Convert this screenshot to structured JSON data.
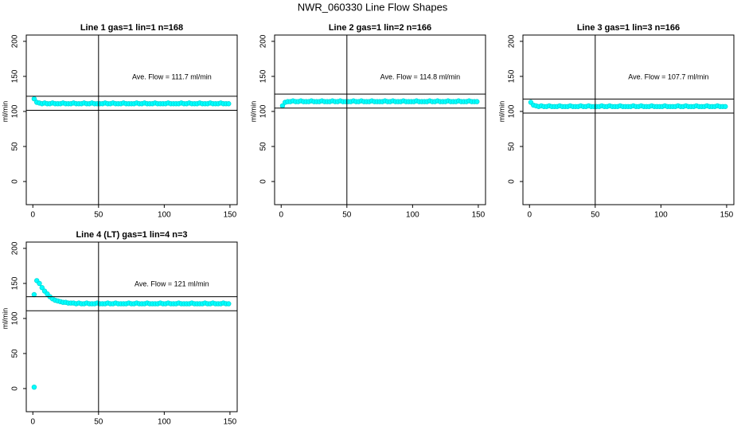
{
  "title": "NWR_060330  Line Flow Shapes",
  "chart_data": [
    {
      "type": "scatter",
      "title": "Line 1 gas=1 lin=1 n=168",
      "ylabel": "ml/min",
      "annotation": "Ave. Flow =  111.7  ml/min",
      "color": "#00ffff",
      "x": [
        1,
        3,
        5,
        7,
        9,
        11,
        13,
        15,
        17,
        19,
        21,
        23,
        25,
        27,
        29,
        31,
        33,
        35,
        37,
        39,
        41,
        43,
        45,
        47,
        49,
        51,
        53,
        55,
        57,
        59,
        61,
        63,
        65,
        67,
        69,
        71,
        73,
        75,
        77,
        79,
        81,
        83,
        85,
        87,
        89,
        91,
        93,
        95,
        97,
        99,
        101,
        103,
        105,
        107,
        109,
        111,
        113,
        115,
        117,
        119,
        121,
        123,
        125,
        127,
        129,
        131,
        133,
        135,
        137,
        139,
        141,
        143,
        145,
        147,
        149
      ],
      "values": [
        118,
        113,
        112,
        111,
        112,
        111,
        111,
        112,
        111,
        111,
        111,
        112,
        111,
        111,
        111,
        112,
        111,
        111,
        111,
        112,
        111,
        111,
        112,
        111,
        111,
        111,
        111,
        112,
        111,
        111,
        112,
        111,
        111,
        111,
        112,
        111,
        111,
        111,
        111,
        112,
        111,
        111,
        112,
        111,
        111,
        111,
        112,
        111,
        111,
        111,
        111,
        112,
        111,
        111,
        111,
        111,
        112,
        111,
        111,
        112,
        111,
        111,
        111,
        112,
        111,
        111,
        111,
        112,
        111,
        111,
        111,
        112,
        111,
        111,
        111
      ],
      "hlines": [
        101.7,
        121.7
      ],
      "vline": 50,
      "xlim": [
        -5,
        155.5
      ],
      "ylim": [
        -33,
        209
      ],
      "xticks": [
        0,
        50,
        100,
        150
      ],
      "yticks": [
        0,
        50,
        100,
        150,
        200
      ]
    },
    {
      "type": "scatter",
      "title": "Line 2 gas=1 lin=2 n=166",
      "ylabel": "ml/min",
      "annotation": "Ave. Flow =  114.8  ml/min",
      "color": "#00ffff",
      "x": [
        1,
        3,
        5,
        7,
        9,
        11,
        13,
        15,
        17,
        19,
        21,
        23,
        25,
        27,
        29,
        31,
        33,
        35,
        37,
        39,
        41,
        43,
        45,
        47,
        49,
        51,
        53,
        55,
        57,
        59,
        61,
        63,
        65,
        67,
        69,
        71,
        73,
        75,
        77,
        79,
        81,
        83,
        85,
        87,
        89,
        91,
        93,
        95,
        97,
        99,
        101,
        103,
        105,
        107,
        109,
        111,
        113,
        115,
        117,
        119,
        121,
        123,
        125,
        127,
        129,
        131,
        133,
        135,
        137,
        139,
        141,
        143,
        145,
        147,
        149
      ],
      "values": [
        108,
        113,
        114,
        114,
        115,
        114,
        114,
        115,
        114,
        114,
        114,
        115,
        114,
        114,
        114,
        115,
        114,
        114,
        114,
        115,
        114,
        114,
        115,
        114,
        114,
        114,
        114,
        115,
        114,
        114,
        115,
        114,
        114,
        114,
        115,
        114,
        114,
        114,
        114,
        115,
        114,
        114,
        115,
        114,
        114,
        114,
        115,
        114,
        114,
        114,
        114,
        115,
        114,
        114,
        114,
        114,
        115,
        114,
        114,
        115,
        114,
        114,
        114,
        115,
        114,
        114,
        114,
        115,
        114,
        114,
        114,
        115,
        114,
        114,
        114
      ],
      "hlines": [
        104.8,
        124.8
      ],
      "vline": 50,
      "xlim": [
        -5,
        155.5
      ],
      "ylim": [
        -33,
        209
      ],
      "xticks": [
        0,
        50,
        100,
        150
      ],
      "yticks": [
        0,
        50,
        100,
        150,
        200
      ]
    },
    {
      "type": "scatter",
      "title": "Line 3 gas=1 lin=3 n=166",
      "ylabel": "ml/min",
      "annotation": "Ave. Flow =  107.7  ml/min",
      "color": "#00ffff",
      "x": [
        1,
        3,
        5,
        7,
        9,
        11,
        13,
        15,
        17,
        19,
        21,
        23,
        25,
        27,
        29,
        31,
        33,
        35,
        37,
        39,
        41,
        43,
        45,
        47,
        49,
        51,
        53,
        55,
        57,
        59,
        61,
        63,
        65,
        67,
        69,
        71,
        73,
        75,
        77,
        79,
        81,
        83,
        85,
        87,
        89,
        91,
        93,
        95,
        97,
        99,
        101,
        103,
        105,
        107,
        109,
        111,
        113,
        115,
        117,
        119,
        121,
        123,
        125,
        127,
        129,
        131,
        133,
        135,
        137,
        139,
        141,
        143,
        145,
        147,
        149
      ],
      "values": [
        113,
        109,
        108,
        107,
        108,
        107,
        107,
        108,
        107,
        107,
        107,
        108,
        107,
        107,
        107,
        108,
        107,
        107,
        107,
        108,
        107,
        107,
        108,
        107,
        107,
        107,
        107,
        108,
        107,
        107,
        108,
        107,
        107,
        107,
        108,
        107,
        107,
        107,
        107,
        108,
        107,
        107,
        108,
        107,
        107,
        107,
        108,
        107,
        107,
        107,
        107,
        108,
        107,
        107,
        107,
        107,
        108,
        107,
        107,
        108,
        107,
        107,
        107,
        108,
        107,
        107,
        107,
        108,
        107,
        107,
        107,
        108,
        107,
        107,
        107
      ],
      "hlines": [
        97.7,
        117.7
      ],
      "vline": 50,
      "xlim": [
        -5,
        155.5
      ],
      "ylim": [
        -33,
        209
      ],
      "xticks": [
        0,
        50,
        100,
        150
      ],
      "yticks": [
        0,
        50,
        100,
        150,
        200
      ]
    },
    {
      "type": "scatter",
      "title": "Line 4 (LT) gas=1 lin=4 n=3",
      "ylabel": "ml/min",
      "annotation": "Ave. Flow =  121  ml/min",
      "color": "#00ffff",
      "x": [
        1,
        1,
        3,
        5,
        7,
        9,
        11,
        13,
        15,
        17,
        19,
        21,
        23,
        25,
        27,
        29,
        31,
        33,
        35,
        37,
        39,
        41,
        43,
        45,
        47,
        49,
        51,
        53,
        55,
        57,
        59,
        61,
        63,
        65,
        67,
        69,
        71,
        73,
        75,
        77,
        79,
        81,
        83,
        85,
        87,
        89,
        91,
        93,
        95,
        97,
        99,
        101,
        103,
        105,
        107,
        109,
        111,
        113,
        115,
        117,
        119,
        121,
        123,
        125,
        127,
        129,
        131,
        133,
        135,
        137,
        139,
        141,
        143,
        145,
        147,
        149
      ],
      "values": [
        2,
        134,
        154,
        150,
        144,
        139,
        135,
        131,
        128,
        126,
        125,
        124,
        123,
        123,
        122,
        122,
        122,
        121,
        122,
        121,
        121,
        122,
        121,
        121,
        121,
        122,
        121,
        121,
        121,
        122,
        121,
        121,
        122,
        121,
        121,
        121,
        121,
        122,
        121,
        121,
        122,
        121,
        121,
        121,
        122,
        121,
        121,
        121,
        121,
        122,
        121,
        121,
        122,
        121,
        121,
        121,
        122,
        121,
        121,
        121,
        121,
        122,
        121,
        121,
        121,
        121,
        122,
        121,
        121,
        122,
        121,
        121,
        121,
        122,
        121,
        121
      ],
      "hlines": [
        111,
        131
      ],
      "vline": 50,
      "xlim": [
        -5,
        155.5
      ],
      "ylim": [
        -33,
        209
      ],
      "xticks": [
        0,
        50,
        100,
        150
      ],
      "yticks": [
        0,
        50,
        100,
        150,
        200
      ]
    }
  ]
}
